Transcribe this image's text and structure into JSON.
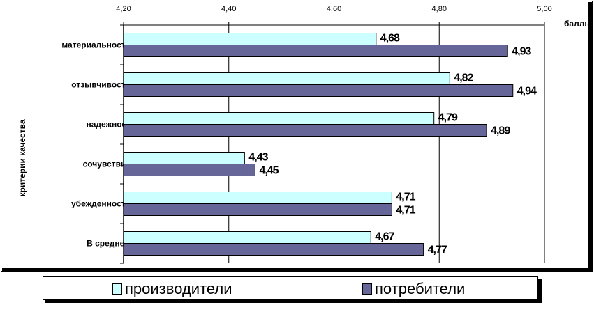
{
  "chart_data": {
    "type": "bar",
    "orientation": "horizontal",
    "categories": [
      "материальность",
      "отзывчивость",
      "надежност",
      "сочувствие",
      "убежденность",
      "В среднем"
    ],
    "series": [
      {
        "name": "производители",
        "values": [
          4.68,
          4.82,
          4.79,
          4.43,
          4.71,
          4.67
        ],
        "labels": [
          "4,68",
          "4,82",
          "4,79",
          "4,43",
          "4,71",
          "4,67"
        ],
        "color": "#ccffff"
      },
      {
        "name": "потребители",
        "values": [
          4.93,
          4.94,
          4.89,
          4.45,
          4.71,
          4.77
        ],
        "labels": [
          "4,93",
          "4,94",
          "4,89",
          "4,45",
          "4,71",
          "4,77"
        ],
        "color": "#666699"
      }
    ],
    "xlim": [
      4.2,
      5.0
    ],
    "xticks": [
      4.2,
      4.4,
      4.6,
      4.8,
      5.0
    ],
    "xtick_labels": [
      "4,20",
      "4,40",
      "4,60",
      "4,80",
      "5,00"
    ],
    "xaxis_position": "top",
    "xlabel": "баллы",
    "ylabel": "критерии качества",
    "grid": true,
    "legend_position": "bottom"
  }
}
